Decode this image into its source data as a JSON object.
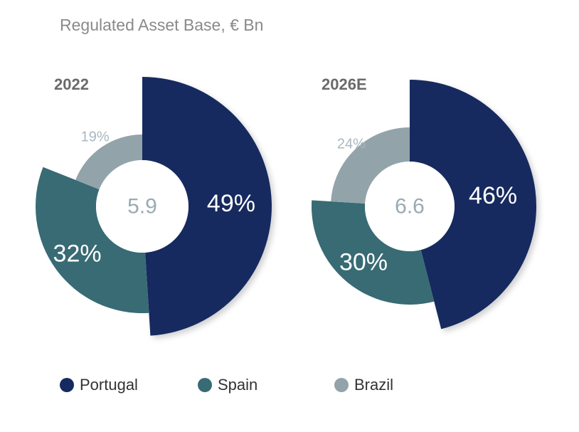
{
  "title": "Regulated Asset Base, € Bn",
  "colors": {
    "Portugal": "#152a5e",
    "Spain": "#386b74",
    "Brazil": "#93a3aa"
  },
  "chart_data": [
    {
      "type": "pie",
      "label": "2022",
      "total": "5.9",
      "slices": [
        {
          "name": "Portugal",
          "value": 49,
          "label": "49%"
        },
        {
          "name": "Spain",
          "value": 32,
          "label": "32%"
        },
        {
          "name": "Brazil",
          "value": 19,
          "label": "19%"
        }
      ]
    },
    {
      "type": "pie",
      "label": "2026E",
      "total": "6.6",
      "slices": [
        {
          "name": "Portugal",
          "value": 46,
          "label": "46%"
        },
        {
          "name": "Spain",
          "value": 30,
          "label": "30%"
        },
        {
          "name": "Brazil",
          "value": 24,
          "label": "24%"
        }
      ]
    }
  ],
  "legend": [
    {
      "name": "Portugal",
      "label": "Portugal"
    },
    {
      "name": "Spain",
      "label": "Spain"
    },
    {
      "name": "Brazil",
      "label": "Brazil"
    }
  ]
}
